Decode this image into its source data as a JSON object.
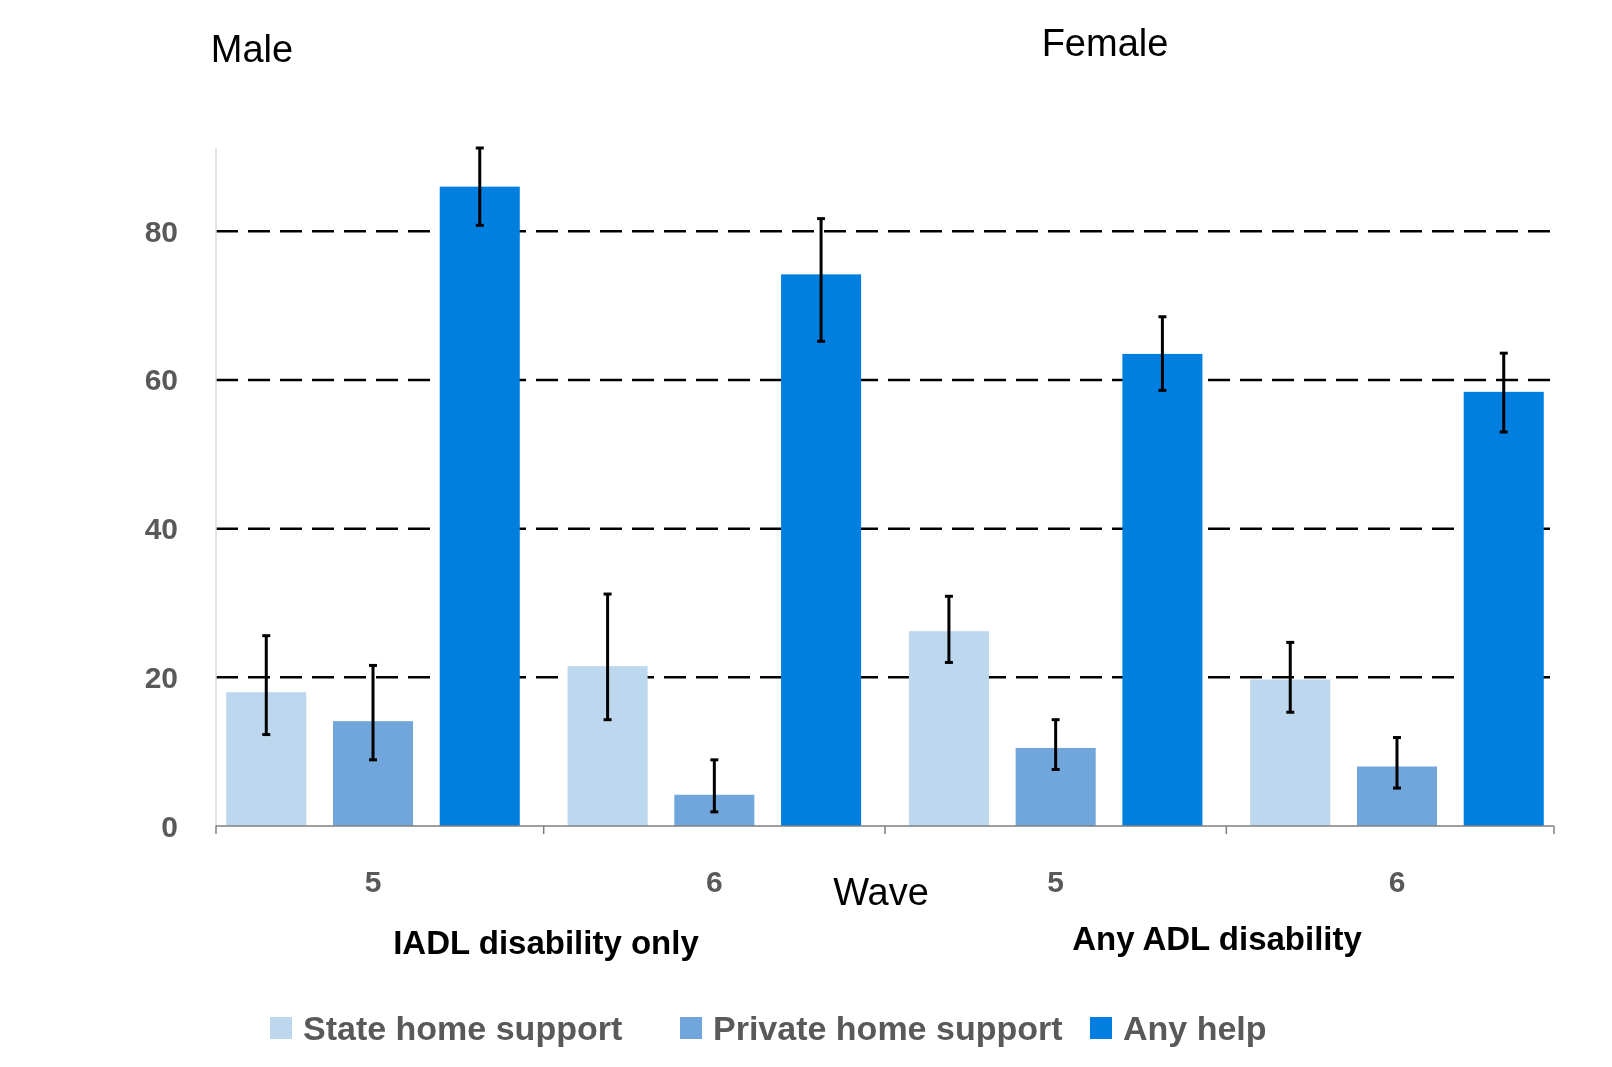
{
  "chart_data": {
    "type": "bar",
    "categories": [
      "5",
      "6",
      "5",
      "6"
    ],
    "series": [
      {
        "name": "State home support",
        "color": "#bdd7ee",
        "values": [
          18.0,
          21.5,
          26.2,
          19.7
        ],
        "errors": [
          [
            12.3,
            25.6
          ],
          [
            14.3,
            31.2
          ],
          [
            22.0,
            30.9
          ],
          [
            15.3,
            24.7
          ]
        ]
      },
      {
        "name": "Private home support",
        "color": "#70a6db",
        "values": [
          14.1,
          4.2,
          10.5,
          8.0
        ],
        "errors": [
          [
            8.9,
            21.6
          ],
          [
            1.9,
            8.9
          ],
          [
            7.6,
            14.3
          ],
          [
            5.1,
            11.9
          ]
        ]
      },
      {
        "name": "Any help",
        "color": "#007fe0",
        "values": [
          86.0,
          74.2,
          63.5,
          58.4
        ],
        "errors": [
          [
            80.8,
            91.2
          ],
          [
            65.2,
            81.7
          ],
          [
            58.6,
            68.5
          ],
          [
            53.0,
            63.6
          ]
        ]
      }
    ],
    "ylim": [
      0,
      91.2
    ],
    "yticks": [
      0,
      20,
      40,
      60,
      80
    ],
    "grid": "y",
    "line_style": "dashed",
    "legend": "bottom",
    "annotations": [
      "Male",
      "Female",
      "Wave",
      "IADL disability only",
      "Any ADL disability"
    ]
  }
}
